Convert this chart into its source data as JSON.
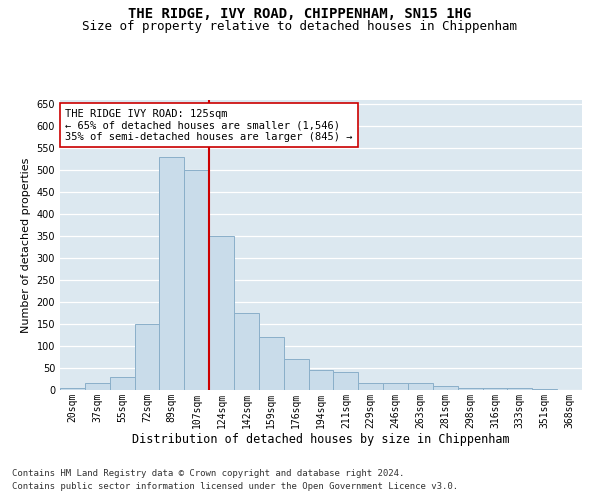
{
  "title": "THE RIDGE, IVY ROAD, CHIPPENHAM, SN15 1HG",
  "subtitle": "Size of property relative to detached houses in Chippenham",
  "xlabel": "Distribution of detached houses by size in Chippenham",
  "ylabel": "Number of detached properties",
  "categories": [
    "20sqm",
    "37sqm",
    "55sqm",
    "72sqm",
    "89sqm",
    "107sqm",
    "124sqm",
    "142sqm",
    "159sqm",
    "176sqm",
    "194sqm",
    "211sqm",
    "229sqm",
    "246sqm",
    "263sqm",
    "281sqm",
    "298sqm",
    "316sqm",
    "333sqm",
    "351sqm",
    "368sqm"
  ],
  "values": [
    5,
    15,
    30,
    150,
    530,
    500,
    350,
    175,
    120,
    70,
    45,
    40,
    15,
    15,
    15,
    10,
    5,
    5,
    5,
    2,
    1
  ],
  "bar_color": "#c9dcea",
  "bar_edge_color": "#8aafc9",
  "marker_index": 6,
  "marker_color": "#cc0000",
  "annotation_text": "THE RIDGE IVY ROAD: 125sqm\n← 65% of detached houses are smaller (1,546)\n35% of semi-detached houses are larger (845) →",
  "annotation_box_color": "#ffffff",
  "annotation_box_edge": "#cc0000",
  "ylim": [
    0,
    660
  ],
  "yticks": [
    0,
    50,
    100,
    150,
    200,
    250,
    300,
    350,
    400,
    450,
    500,
    550,
    600,
    650
  ],
  "background_color": "#dce8f0",
  "grid_color": "#ffffff",
  "footer_line1": "Contains HM Land Registry data © Crown copyright and database right 2024.",
  "footer_line2": "Contains public sector information licensed under the Open Government Licence v3.0.",
  "title_fontsize": 10,
  "subtitle_fontsize": 9,
  "xlabel_fontsize": 8.5,
  "ylabel_fontsize": 8,
  "tick_fontsize": 7,
  "annotation_fontsize": 7.5,
  "footer_fontsize": 6.5
}
